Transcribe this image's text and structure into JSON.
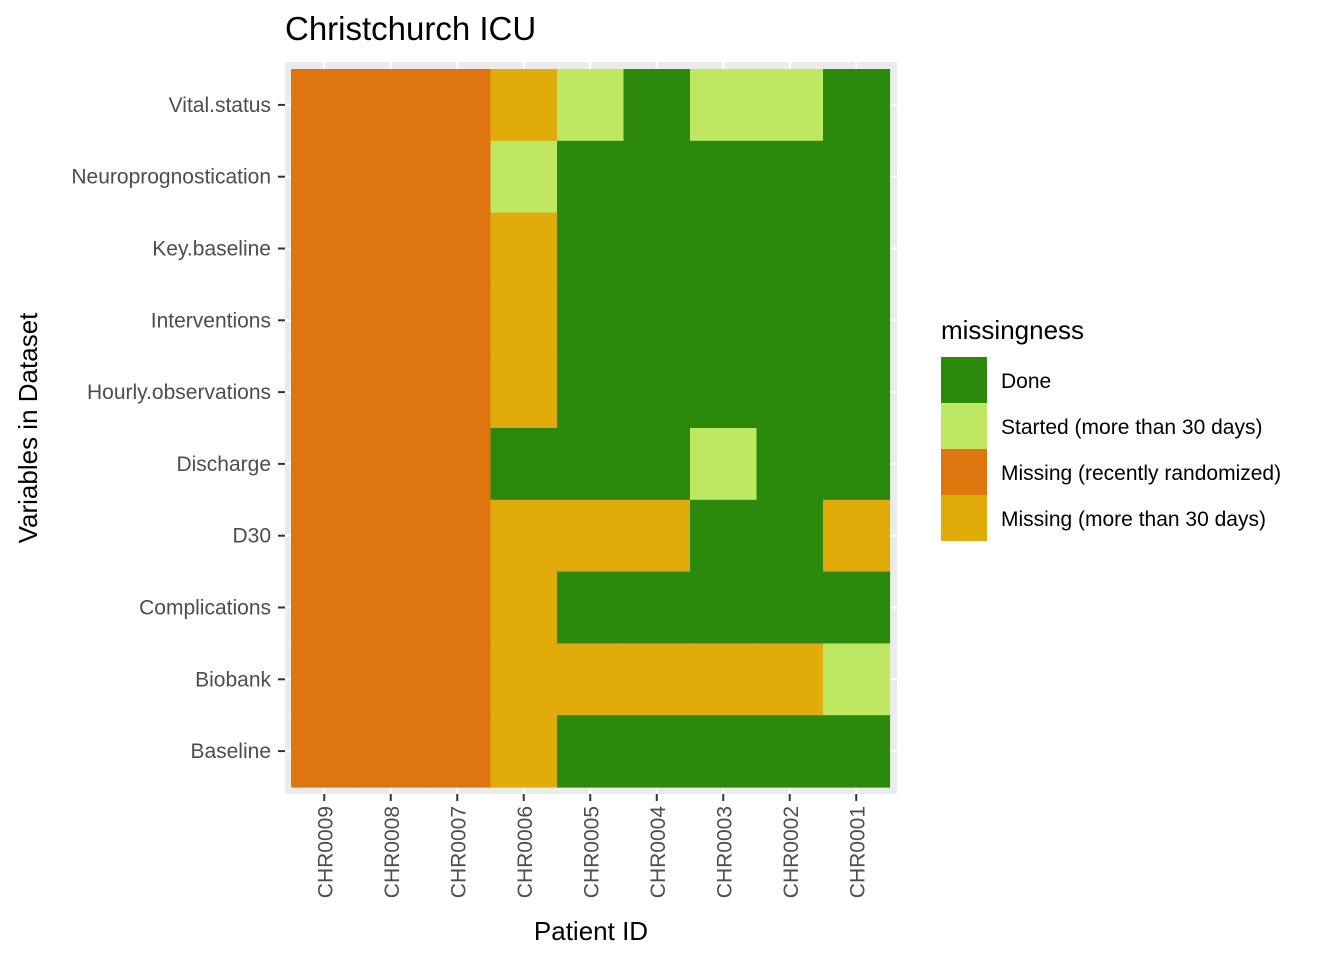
{
  "chart_data": {
    "type": "heatmap",
    "title": "Christchurch ICU",
    "xlabel": "Patient ID",
    "ylabel": "Variables in Dataset",
    "x_categories": [
      "CHR0009",
      "CHR0008",
      "CHR0007",
      "CHR0006",
      "CHR0005",
      "CHR0004",
      "CHR0003",
      "CHR0002",
      "CHR0001"
    ],
    "y_categories_top_to_bottom": [
      "Vital.status",
      "Neuroprognostication",
      "Key.baseline",
      "Interventions",
      "Hourly.observations",
      "Discharge",
      "D30",
      "Complications",
      "Biobank",
      "Baseline"
    ],
    "legend": {
      "title": "missingness",
      "placement": "right",
      "entries": [
        {
          "key": "done",
          "label": "Done",
          "color": "#2b8a0b"
        },
        {
          "key": "started",
          "label": "Started (more than 30 days)",
          "color": "#bfe862"
        },
        {
          "key": "recent",
          "label": "Missing (recently randomized)",
          "color": "#df750e"
        },
        {
          "key": "missing30",
          "label": "Missing (more than 30 days)",
          "color": "#e1ab09"
        }
      ]
    },
    "values": {
      "Vital.status": [
        "recent",
        "recent",
        "recent",
        "missing30",
        "started",
        "done",
        "started",
        "started",
        "done"
      ],
      "Neuroprognostication": [
        "recent",
        "recent",
        "recent",
        "started",
        "done",
        "done",
        "done",
        "done",
        "done"
      ],
      "Key.baseline": [
        "recent",
        "recent",
        "recent",
        "missing30",
        "done",
        "done",
        "done",
        "done",
        "done"
      ],
      "Interventions": [
        "recent",
        "recent",
        "recent",
        "missing30",
        "done",
        "done",
        "done",
        "done",
        "done"
      ],
      "Hourly.observations": [
        "recent",
        "recent",
        "recent",
        "missing30",
        "done",
        "done",
        "done",
        "done",
        "done"
      ],
      "Discharge": [
        "recent",
        "recent",
        "recent",
        "done",
        "done",
        "done",
        "started",
        "done",
        "done"
      ],
      "D30": [
        "recent",
        "recent",
        "recent",
        "missing30",
        "missing30",
        "missing30",
        "done",
        "done",
        "missing30"
      ],
      "Complications": [
        "recent",
        "recent",
        "recent",
        "missing30",
        "done",
        "done",
        "done",
        "done",
        "done"
      ],
      "Biobank": [
        "recent",
        "recent",
        "recent",
        "missing30",
        "missing30",
        "missing30",
        "missing30",
        "missing30",
        "started"
      ],
      "Baseline": [
        "recent",
        "recent",
        "recent",
        "missing30",
        "done",
        "done",
        "done",
        "done",
        "done"
      ]
    },
    "grid": true,
    "panel_background": "#ebebeb"
  }
}
